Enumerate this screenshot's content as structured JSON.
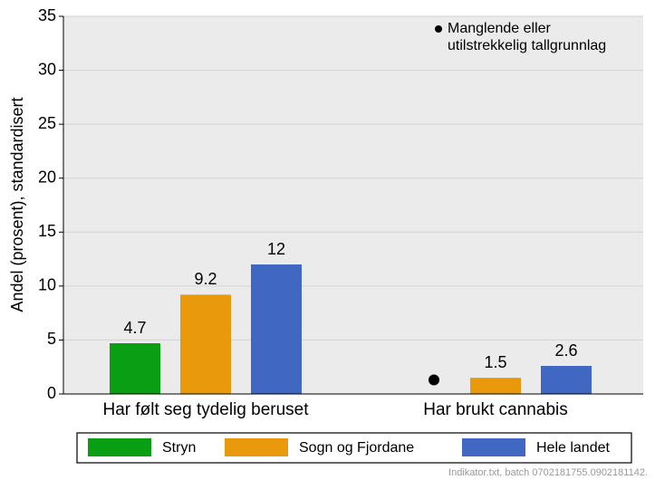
{
  "chart_data": {
    "type": "bar",
    "y_label": "Andel (prosent), standardisert",
    "categories": [
      "Har følt seg tydelig beruset",
      "Har brukt cannabis"
    ],
    "series": [
      {
        "name": "Stryn",
        "color": "#0a9e14",
        "values": [
          4.7,
          null
        ]
      },
      {
        "name": "Sogn og Fjordane",
        "color": "#e89a0c",
        "values": [
          9.2,
          1.5
        ]
      },
      {
        "name": "Hele landet",
        "color": "#4068c2",
        "values": [
          12,
          2.6
        ]
      }
    ],
    "ylim": [
      0,
      35
    ],
    "yticks": [
      0,
      5,
      10,
      15,
      20,
      25,
      30,
      35
    ],
    "grid": true,
    "annotation": [
      "Manglende eller",
      "utilstrekkelig tallgrunnlag"
    ],
    "footer": "Indikator.txt, batch 0702181755.0902181142."
  }
}
